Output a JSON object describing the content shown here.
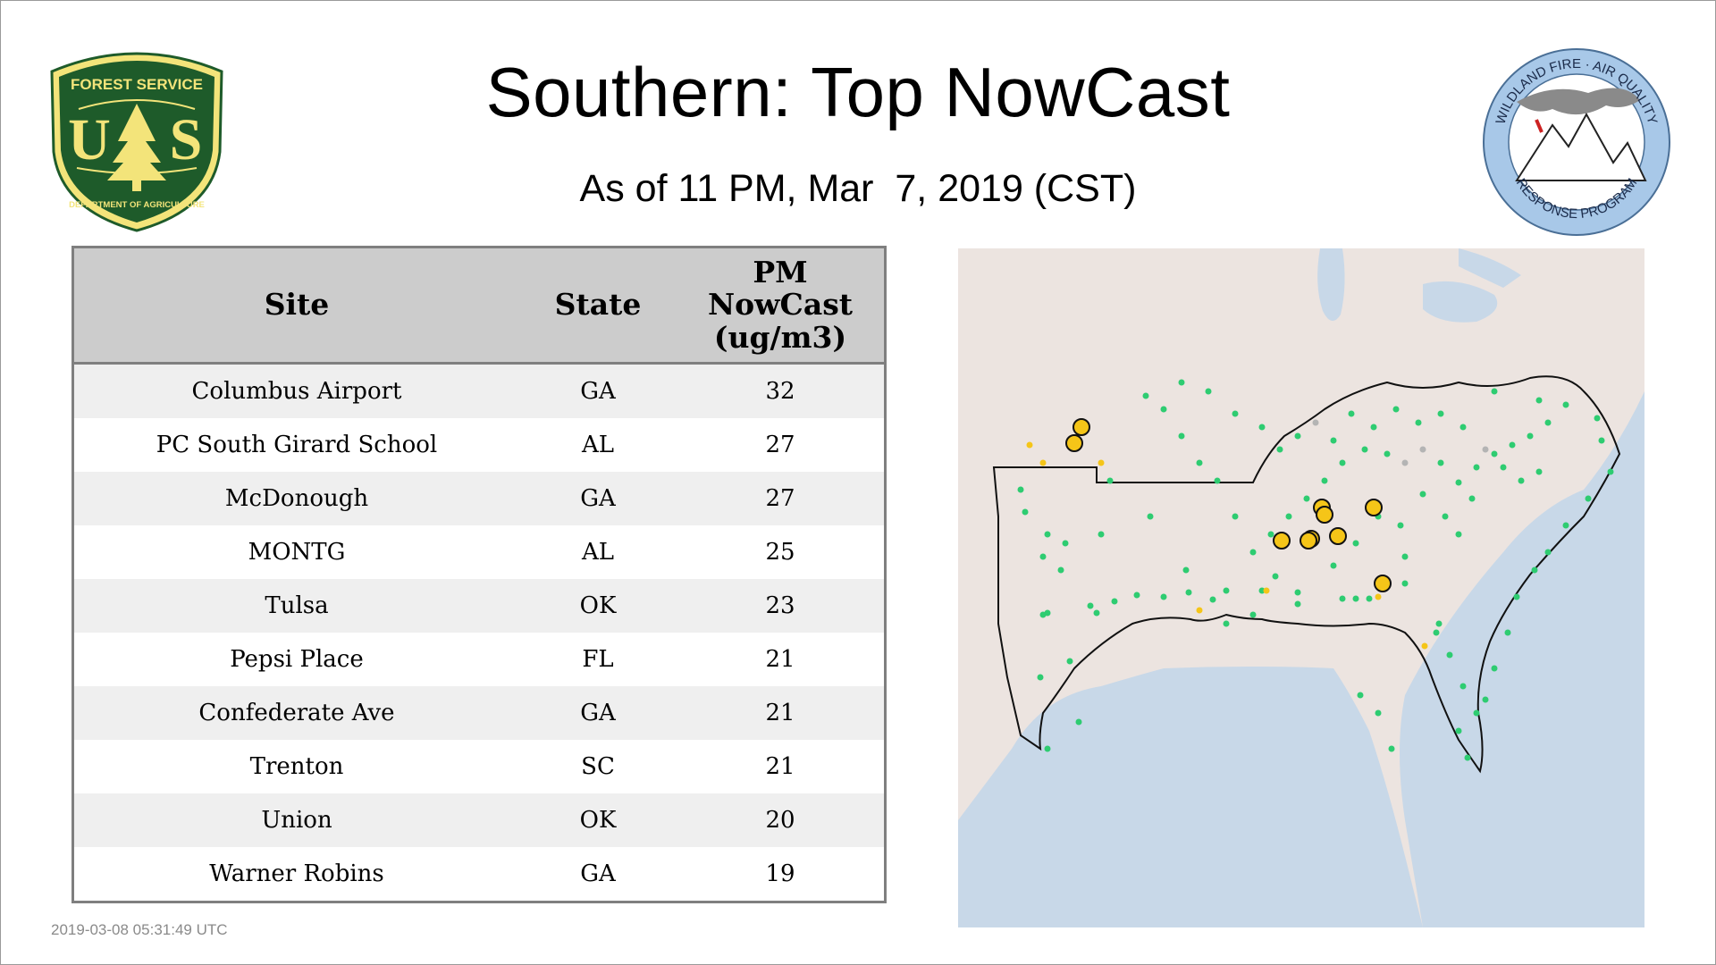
{
  "title": "Southern: Top NowCast",
  "subtitle": "As of 11 PM, Mar  7, 2019 (CST)",
  "timestamp": "2019-03-08 05:31:49 UTC",
  "logos": {
    "usfs": {
      "top": "FOREST SERVICE",
      "letters": "US",
      "bottom": "DEPARTMENT OF AGRICULTURE"
    },
    "wfaq": {
      "top": "WILDLAND FIRE · AIR QUALITY",
      "bottom": "RESPONSE PROGRAM"
    }
  },
  "table": {
    "headers": {
      "site": "Site",
      "state": "State",
      "value_l1": "PM",
      "value_l2": "NowCast",
      "value_l3": "(ug/m3)"
    },
    "rows": [
      {
        "site": "Columbus Airport",
        "state": "GA",
        "value": "32"
      },
      {
        "site": "PC South Girard School",
        "state": "AL",
        "value": "27"
      },
      {
        "site": "McDonough",
        "state": "GA",
        "value": "27"
      },
      {
        "site": "MONTG",
        "state": "AL",
        "value": "25"
      },
      {
        "site": "Tulsa",
        "state": "OK",
        "value": "23"
      },
      {
        "site": "Pepsi Place",
        "state": "FL",
        "value": "21"
      },
      {
        "site": "Confederate Ave",
        "state": "GA",
        "value": "21"
      },
      {
        "site": "Trenton",
        "state": "SC",
        "value": "21"
      },
      {
        "site": "Union",
        "state": "OK",
        "value": "20"
      },
      {
        "site": "Warner Robins",
        "state": "GA",
        "value": "19"
      }
    ]
  },
  "colors": {
    "good": "#2ecc71",
    "moderate": "#f5c518",
    "nodata": "#b4b4b4",
    "land": "#ece4e0",
    "water": "#c8d8e8",
    "usfs_green": "#1e5b2a",
    "usfs_gold": "#f3e47a",
    "wfaq_blue": "#a8c8e8"
  }
}
